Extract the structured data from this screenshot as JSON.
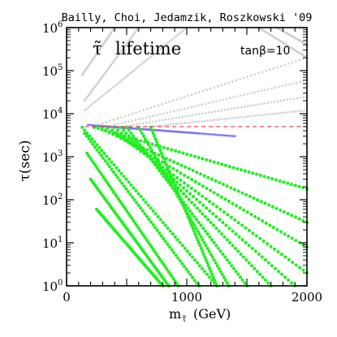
{
  "chart_data": {
    "type": "scatter",
    "title": "Bailly, Choi, Jedamzik, Roszkowski '09",
    "ylabel": "τ(sec)",
    "xlabel": "m",
    "xlabel_sub": "τ̃",
    "xlabel_unit": "(GeV)",
    "annotation_symbol": "τ̃",
    "annotation_text": "lifetime",
    "annotation_param": "tanβ=10",
    "xlim": [
      0,
      2000
    ],
    "ylim_log10": [
      0,
      6
    ],
    "x_ticks": [
      0,
      1000,
      2000
    ],
    "x_tick_labels": [
      "0",
      "1000",
      "2000"
    ],
    "y_tick_exponents": [
      0,
      1,
      2,
      3,
      4,
      5,
      6
    ],
    "y_tick_labels": [
      "10",
      "10",
      "10",
      "10",
      "10",
      "10",
      "10"
    ],
    "y_tick_label_exponents": [
      "0",
      "1",
      "2",
      "3",
      "4",
      "5",
      "6"
    ],
    "y_scale": "log",
    "reference_line": {
      "y": 5000,
      "style": "dashed",
      "color": "#e2334f"
    },
    "colors": {
      "grey": "#cfcfcf",
      "blue": "#7b7bf0",
      "green": "#22ee22"
    },
    "series": [
      {
        "color": "grey",
        "style": "dotted",
        "curves": [
          {
            "x": [
              150,
              1000
            ],
            "y": [
              12000,
              1000000
            ]
          },
          {
            "x": [
              150,
              600
            ],
            "y": [
              20000,
              1000000
            ]
          },
          {
            "x": [
              130,
              400
            ],
            "y": [
              80000,
              1000000
            ]
          },
          {
            "x": [
              300,
              2000
            ],
            "y": [
              6000,
              200000
            ]
          },
          {
            "x": [
              400,
              2000
            ],
            "y": [
              5500,
              60000
            ]
          },
          {
            "x": [
              500,
              2000
            ],
            "y": [
              5200,
              25000
            ]
          },
          {
            "x": [
              700,
              2000
            ],
            "y": [
              5000,
              12000
            ]
          },
          {
            "x": [
              1600,
              2000
            ],
            "y": [
              1000000,
              200000
            ]
          },
          {
            "x": [
              1750,
              2000
            ],
            "y": [
              1000000,
              400000
            ]
          }
        ]
      },
      {
        "color": "blue",
        "style": "band",
        "curves": [
          {
            "x": [
              180,
              1400
            ],
            "y": [
              5500,
              3000
            ]
          },
          {
            "x": [
              250,
              1100
            ],
            "y": [
              5200,
              3500
            ]
          }
        ]
      },
      {
        "color": "green",
        "style": "dotted",
        "curves": [
          {
            "x": [
              130,
              1250
            ],
            "y": [
              4800,
              1
            ]
          },
          {
            "x": [
              150,
              1100
            ],
            "y": [
              3500,
              1
            ]
          },
          {
            "x": [
              170,
              930
            ],
            "y": [
              1200,
              1
            ]
          },
          {
            "x": [
              200,
              850
            ],
            "y": [
              300,
              1
            ]
          },
          {
            "x": [
              250,
              800
            ],
            "y": [
              60,
              1
            ]
          },
          {
            "x": [
              230,
              2000
            ],
            "y": [
              4800,
              180
            ]
          },
          {
            "x": [
              260,
              2000
            ],
            "y": [
              4800,
              30
            ]
          },
          {
            "x": [
              300,
              2000
            ],
            "y": [
              4800,
              8
            ]
          },
          {
            "x": [
              350,
              2000
            ],
            "y": [
              4800,
              2
            ]
          },
          {
            "x": [
              400,
              1900
            ],
            "y": [
              4800,
              1
            ]
          },
          {
            "x": [
              450,
              1700
            ],
            "y": [
              4800,
              1
            ]
          },
          {
            "x": [
              500,
              1500
            ],
            "y": [
              4800,
              1
            ]
          },
          {
            "x": [
              600,
              1350
            ],
            "y": [
              4800,
              1
            ]
          },
          {
            "x": [
              700,
              1250
            ],
            "y": [
              4800,
              1
            ]
          }
        ]
      }
    ]
  }
}
